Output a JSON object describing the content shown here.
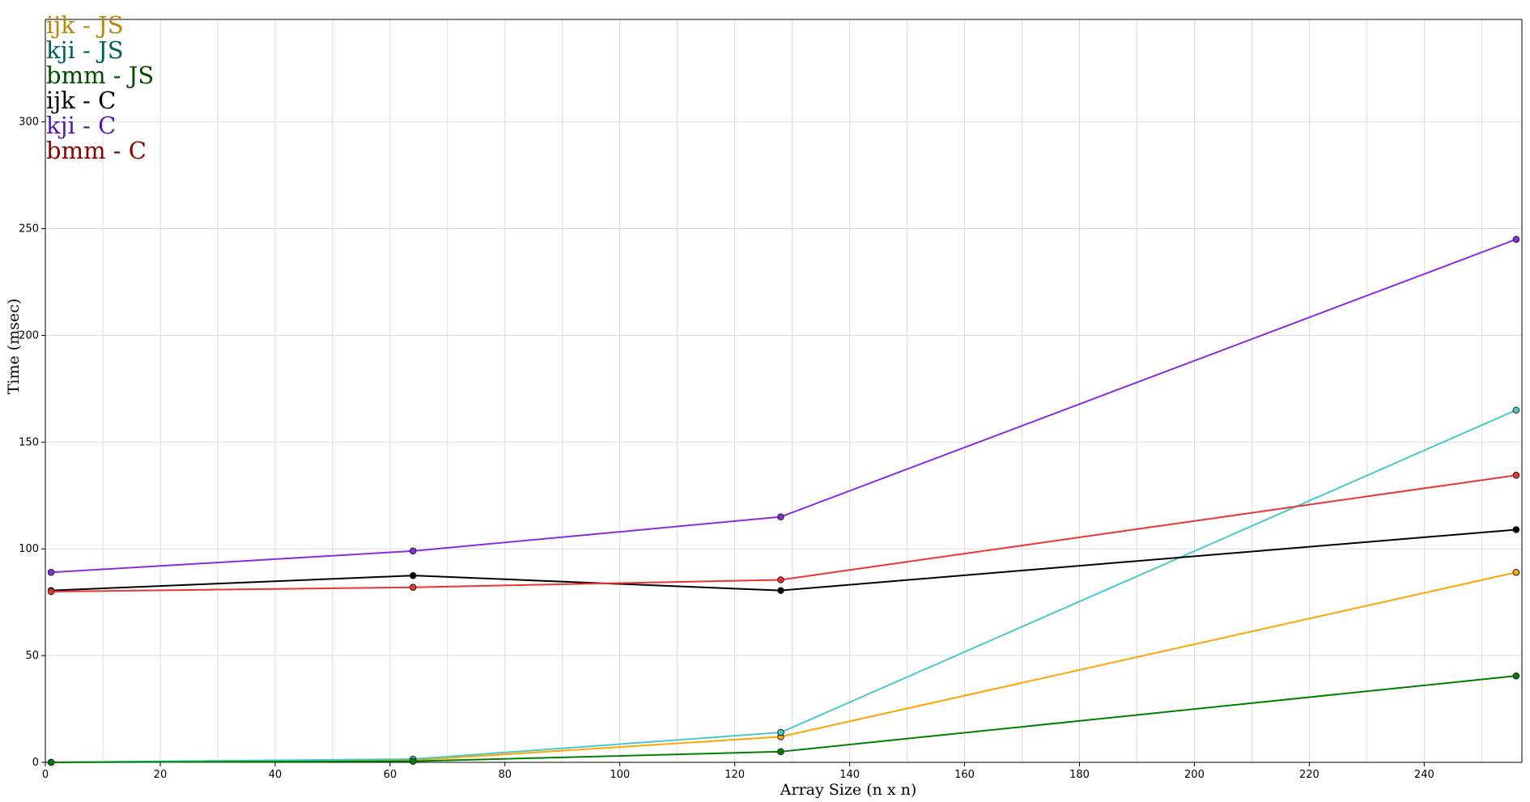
{
  "chart_data": {
    "type": "line",
    "title": "",
    "xlabel": "Array Size (n x n)",
    "ylabel": "Time (msec)",
    "xlim": [
      0,
      257
    ],
    "ylim": [
      0,
      348
    ],
    "x_ticks": [
      0,
      20,
      40,
      60,
      80,
      100,
      120,
      140,
      160,
      180,
      200,
      220,
      240
    ],
    "y_ticks": [
      0,
      50,
      100,
      150,
      200,
      250,
      300
    ],
    "grid": true,
    "legend_position": "top-left",
    "x": [
      1,
      64,
      128,
      256
    ],
    "series": [
      {
        "name": "ijk - JS",
        "color": "#ffa500",
        "text_color": "#b8860b",
        "values": [
          0,
          1,
          12,
          89
        ]
      },
      {
        "name": "kji - JS",
        "color": "#48c9c9",
        "text_color": "#006060",
        "values": [
          0,
          1.5,
          14,
          165
        ]
      },
      {
        "name": "bmm - JS",
        "color": "#008000",
        "text_color": "#004d00",
        "values": [
          0,
          0.5,
          5,
          40.5
        ]
      },
      {
        "name": "ijk - C",
        "color": "#000000",
        "text_color": "#000000",
        "values": [
          80.5,
          87.5,
          80.5,
          109
        ]
      },
      {
        "name": "kji - C",
        "color": "#8a2be2",
        "text_color": "#5a17b0",
        "values": [
          89,
          99,
          115,
          245
        ]
      },
      {
        "name": "bmm - C",
        "color": "#ee3333",
        "text_color": "#8b0000",
        "values": [
          80,
          82,
          85.5,
          134.5
        ]
      }
    ]
  }
}
